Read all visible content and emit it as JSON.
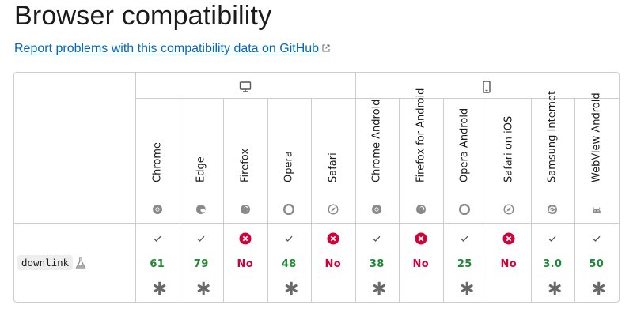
{
  "page": {
    "title": "Browser compatibility",
    "report_link": "Report problems with this compatibility data on GitHub"
  },
  "platforms": [
    {
      "name": "desktop",
      "icon": "desktop-icon"
    },
    {
      "name": "mobile",
      "icon": "mobile-icon"
    }
  ],
  "browsers": [
    {
      "name": "Chrome",
      "icon": "chrome-icon"
    },
    {
      "name": "Edge",
      "icon": "edge-icon"
    },
    {
      "name": "Firefox",
      "icon": "firefox-icon"
    },
    {
      "name": "Opera",
      "icon": "opera-icon"
    },
    {
      "name": "Safari",
      "icon": "safari-icon"
    },
    {
      "name": "Chrome Android",
      "icon": "chrome-icon"
    },
    {
      "name": "Firefox for Android",
      "icon": "firefox-icon"
    },
    {
      "name": "Opera Android",
      "icon": "opera-icon"
    },
    {
      "name": "Safari on iOS",
      "icon": "safari-icon"
    },
    {
      "name": "Samsung Internet",
      "icon": "samsung-internet-icon"
    },
    {
      "name": "WebView Android",
      "icon": "android-icon"
    }
  ],
  "feature": {
    "name": "downlink",
    "experimental_icon": "flask-icon",
    "support": [
      {
        "version": "61",
        "supported": true,
        "notes": true
      },
      {
        "version": "79",
        "supported": true,
        "notes": true
      },
      {
        "version": "No",
        "supported": false,
        "notes": false
      },
      {
        "version": "48",
        "supported": true,
        "notes": true
      },
      {
        "version": "No",
        "supported": false,
        "notes": false
      },
      {
        "version": "38",
        "supported": true,
        "notes": true
      },
      {
        "version": "No",
        "supported": false,
        "notes": false
      },
      {
        "version": "25",
        "supported": true,
        "notes": true
      },
      {
        "version": "No",
        "supported": false,
        "notes": false
      },
      {
        "version": "3.0",
        "supported": true,
        "notes": true
      },
      {
        "version": "50",
        "supported": true,
        "notes": true
      }
    ]
  },
  "colors": {
    "link": "#0069c2",
    "supported": "#1e8a33",
    "unsupported": "#d30038",
    "border": "#cdcdcd"
  }
}
